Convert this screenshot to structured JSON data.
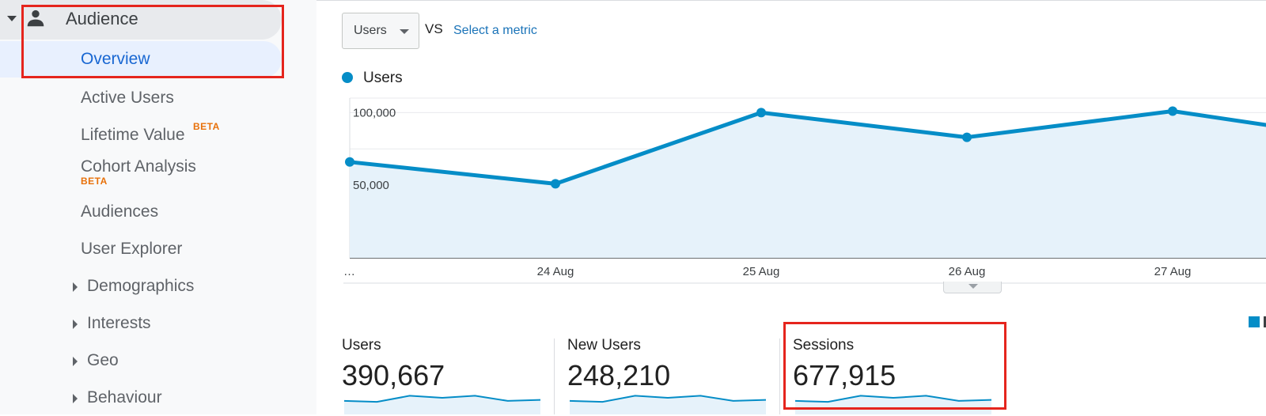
{
  "sidebar": {
    "section": {
      "label": "Audience",
      "icon": "person-icon"
    },
    "items": [
      {
        "label": "Overview",
        "selected": true
      },
      {
        "label": "Active Users"
      },
      {
        "label": "Lifetime Value",
        "badge": "BETA"
      },
      {
        "label": "Cohort Analysis",
        "badge": "BETA"
      },
      {
        "label": "Audiences"
      },
      {
        "label": "User Explorer"
      },
      {
        "label": "Demographics",
        "expandable": true
      },
      {
        "label": "Interests",
        "expandable": true
      },
      {
        "label": "Geo",
        "expandable": true
      },
      {
        "label": "Behaviour",
        "expandable": true
      }
    ]
  },
  "toolbar": {
    "metric_select": "Users",
    "vs_label": "VS",
    "select_metric_link": "Select a metric"
  },
  "chart_data": {
    "type": "area",
    "legend": [
      "Users"
    ],
    "x": [
      "…",
      "24 Aug",
      "25 Aug",
      "26 Aug",
      "27 Aug",
      ""
    ],
    "series": [
      {
        "name": "Users",
        "values": [
          66000,
          51000,
          100000,
          83000,
          101000,
          80000
        ]
      }
    ],
    "ytick_labels": [
      "100,000",
      "50,000"
    ],
    "ytick_values": [
      100000,
      50000
    ],
    "ylim": [
      0,
      110000
    ],
    "grid": true,
    "colors": {
      "line": "#058dc7",
      "fill": "#e6f2fa"
    }
  },
  "metrics": [
    {
      "label": "Users",
      "value": "390,667",
      "spark": [
        4,
        3,
        9,
        7,
        9,
        4,
        5
      ]
    },
    {
      "label": "New Users",
      "value": "248,210",
      "spark": [
        4,
        3,
        9,
        7,
        9,
        4,
        5
      ]
    },
    {
      "label": "Sessions",
      "value": "677,915",
      "spark": [
        4,
        3,
        9,
        7,
        9,
        4,
        5
      ]
    }
  ],
  "colors": {
    "accent": "#058dc7",
    "highlight": "#e5251d",
    "selected_text": "#1967d2",
    "beta": "#e8710a"
  }
}
